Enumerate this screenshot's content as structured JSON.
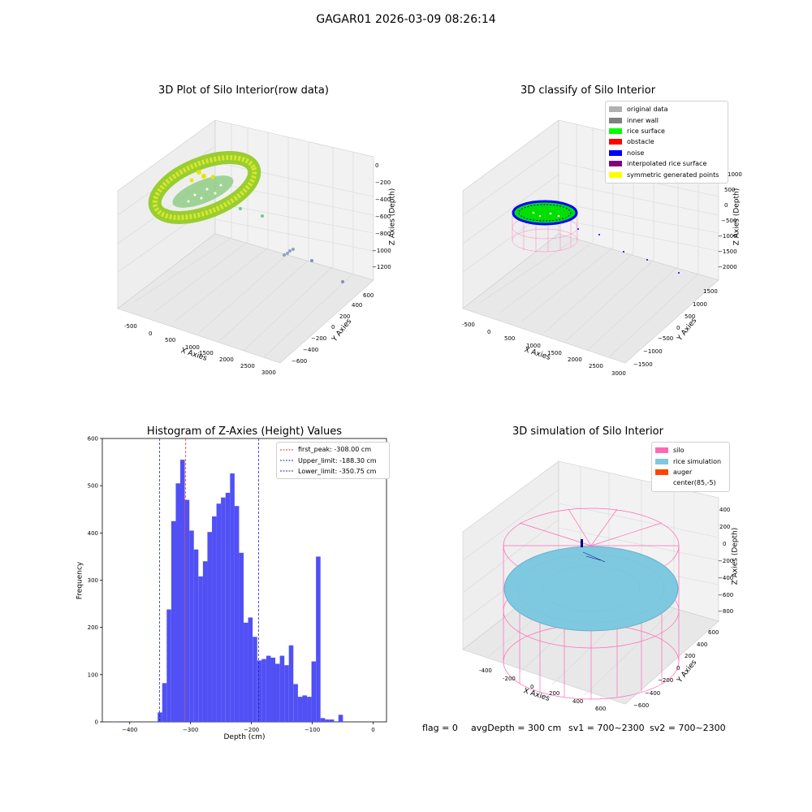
{
  "suptitle": "GAGAR01 2026-03-09 08:26:14",
  "footer": {
    "flag": "flag = 0",
    "avg_depth": "avgDepth = 300 cm",
    "sv1": "sv1 = 700~2300",
    "sv2": "sv2 = 700~2300"
  },
  "colors": {
    "bar": "#5050f5",
    "first_peak": "#e03030",
    "limits": "#2020d0",
    "silo": "#ff69b4",
    "rice": "#7ec8e0",
    "auger": "#ff4500"
  },
  "plots": {
    "raw": {
      "title": "3D Plot of Silo Interior(row data)",
      "xlabel": "X Axies",
      "ylabel": "Y Axies",
      "zlabel": "Z Axies (Depth)",
      "x_ticks": [
        "-500",
        "0",
        "500",
        "1000",
        "1500",
        "2000",
        "2500",
        "3000"
      ],
      "y_ticks": [
        "600",
        "400",
        "200",
        "0",
        "−200",
        "−400",
        "−600"
      ],
      "z_ticks": [
        "0",
        "−200",
        "−400",
        "−600",
        "−800",
        "−1000",
        "−1200"
      ]
    },
    "classify": {
      "title": "3D classify of Silo Interior",
      "xlabel": "X Axies",
      "ylabel": "Y Axies",
      "zlabel": "Z Axies (Depth)",
      "x_ticks": [
        "-500",
        "0",
        "500",
        "1000",
        "1500",
        "2000",
        "2500",
        "3000"
      ],
      "y_ticks": [
        "1500",
        "1000",
        "500",
        "0",
        "−500",
        "−1000",
        "−1500"
      ],
      "z_ticks": [
        "1000",
        "500",
        "0",
        "−500",
        "−1000",
        "−1500",
        "−2000"
      ],
      "legend": [
        {
          "label": "original data",
          "color": "#b0b0b0"
        },
        {
          "label": "inner wall",
          "color": "#808080"
        },
        {
          "label": "rice surface",
          "color": "#00ff00"
        },
        {
          "label": "obstacle",
          "color": "#ff0000"
        },
        {
          "label": "noise",
          "color": "#0000ff"
        },
        {
          "label": "interpolated rice surface",
          "color": "#800080"
        },
        {
          "label": "symmetric generated points",
          "color": "#ffff00"
        }
      ]
    },
    "simulation": {
      "title": "3D simulation of Silo Interior",
      "xlabel": "X Axies",
      "ylabel": "Y Axies",
      "zlabel": "Z Axies (Depth)",
      "x_ticks": [
        "-400",
        "-200",
        "0",
        "200",
        "400",
        "600"
      ],
      "y_ticks": [
        "600",
        "400",
        "200",
        "0",
        "−200",
        "−400",
        "−600"
      ],
      "z_ticks": [
        "400",
        "200",
        "0",
        "−200",
        "−400",
        "−600",
        "−800"
      ],
      "legend": [
        {
          "label": "silo",
          "color": "#ff69b4"
        },
        {
          "label": "rice simulation",
          "color": "#7ec8e0"
        },
        {
          "label": "auger",
          "color": "#ff4500"
        },
        {
          "label": "center(85,-5)",
          "color": ""
        }
      ]
    }
  },
  "chart_data": {
    "type": "bar",
    "title": "Histogram of Z-Axies (Height) Values",
    "xlabel": "Depth (cm)",
    "ylabel": "Frequency",
    "xlim": [
      -445,
      22
    ],
    "ylim": [
      0,
      600
    ],
    "x_ticks": [
      -400,
      -300,
      -200,
      -100,
      0
    ],
    "x_tick_labels": [
      "−400",
      "−300",
      "−200",
      "−100",
      "0"
    ],
    "y_ticks": [
      0,
      100,
      200,
      300,
      400,
      500,
      600
    ],
    "bin_width": 7.43,
    "bins": [
      {
        "x": -429.0,
        "value": 1
      },
      {
        "x": -361.0,
        "value": 1
      },
      {
        "x": -354.0,
        "value": 20
      },
      {
        "x": -346.6,
        "value": 82
      },
      {
        "x": -339.2,
        "value": 238
      },
      {
        "x": -331.7,
        "value": 425
      },
      {
        "x": -324.3,
        "value": 505
      },
      {
        "x": -316.9,
        "value": 555
      },
      {
        "x": -309.4,
        "value": 470
      },
      {
        "x": -302.0,
        "value": 405
      },
      {
        "x": -294.6,
        "value": 365
      },
      {
        "x": -287.1,
        "value": 308
      },
      {
        "x": -279.7,
        "value": 340
      },
      {
        "x": -272.3,
        "value": 402
      },
      {
        "x": -264.8,
        "value": 435
      },
      {
        "x": -257.4,
        "value": 462
      },
      {
        "x": -250.0,
        "value": 475
      },
      {
        "x": -242.5,
        "value": 485
      },
      {
        "x": -235.1,
        "value": 526
      },
      {
        "x": -227.7,
        "value": 457
      },
      {
        "x": -220.2,
        "value": 358
      },
      {
        "x": -212.8,
        "value": 210
      },
      {
        "x": -205.4,
        "value": 221
      },
      {
        "x": -197.9,
        "value": 180
      },
      {
        "x": -190.5,
        "value": 130
      },
      {
        "x": -183.1,
        "value": 133
      },
      {
        "x": -175.6,
        "value": 140
      },
      {
        "x": -168.2,
        "value": 136
      },
      {
        "x": -160.8,
        "value": 123
      },
      {
        "x": -153.3,
        "value": 140
      },
      {
        "x": -145.9,
        "value": 120
      },
      {
        "x": -138.5,
        "value": 162
      },
      {
        "x": -131.0,
        "value": 80
      },
      {
        "x": -123.6,
        "value": 53
      },
      {
        "x": -116.2,
        "value": 56
      },
      {
        "x": -108.7,
        "value": 53
      },
      {
        "x": -101.3,
        "value": 128
      },
      {
        "x": -93.9,
        "value": 350
      },
      {
        "x": -86.4,
        "value": 8
      },
      {
        "x": -79.0,
        "value": 5
      },
      {
        "x": -71.6,
        "value": 5
      },
      {
        "x": -57.0,
        "value": 15
      }
    ],
    "vlines": [
      {
        "name": "first_peak: -308.00 cm",
        "x": -308.0,
        "color": "#e03030"
      },
      {
        "name": "Upper_limit: -188.30 cm",
        "x": -188.3,
        "color": "#2020d0"
      },
      {
        "name": "Lower_limit: -350.75 cm",
        "x": -350.75,
        "color": "#2020d0"
      }
    ],
    "legend_position": "upper right",
    "grid": false
  }
}
